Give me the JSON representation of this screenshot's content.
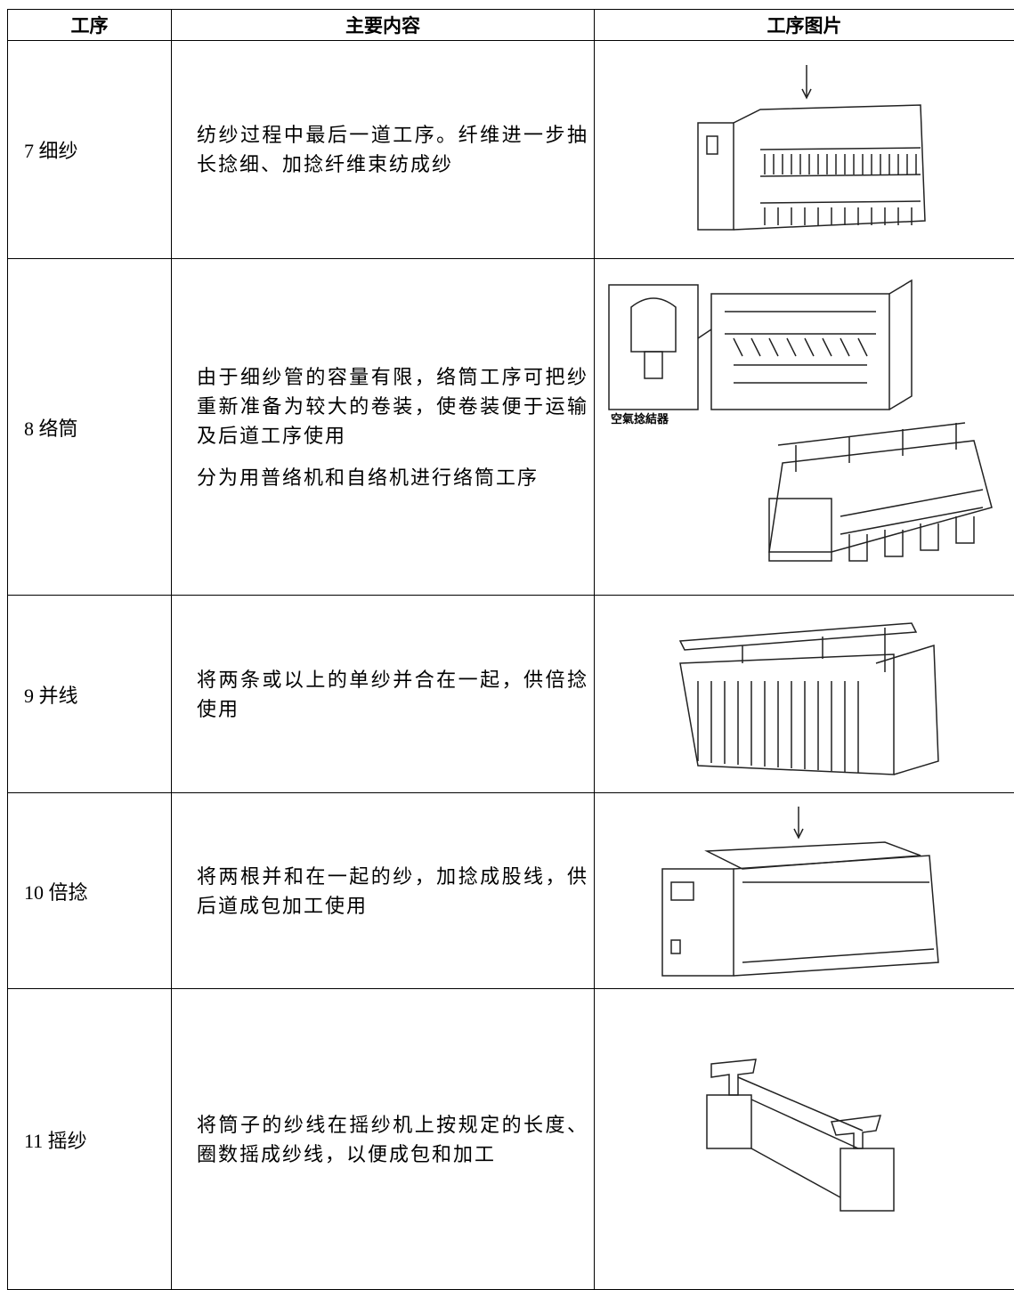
{
  "table": {
    "header": [
      "工序",
      "主要内容",
      "工序图片"
    ],
    "rows": [
      {
        "step": "7 细纱",
        "content": [
          "纺纱过程中最后一道工序。纤维进一步抽长捻细、加捻纤维束纺成纱"
        ]
      },
      {
        "step": "8 络筒",
        "content": [
          "由于细纱管的容量有限，络筒工序可把纱重新准备为较大的卷装，使卷装便于运输及后道工序使用",
          "分为用普络机和自络机进行络筒工序"
        ],
        "image_label": "空氣捻結器"
      },
      {
        "step": "9 并线",
        "content": [
          "将两条或以上的单纱并合在一起，供倍捻使用"
        ]
      },
      {
        "step": "10 倍捻",
        "content": [
          "将两根并和在一起的纱，加捻成股线，供后道成包加工使用"
        ]
      },
      {
        "step": "11 摇纱",
        "content": [
          "将筒子的纱线在摇纱机上按规定的长度、圈数摇成纱线，以便成包和加工"
        ]
      }
    ]
  }
}
